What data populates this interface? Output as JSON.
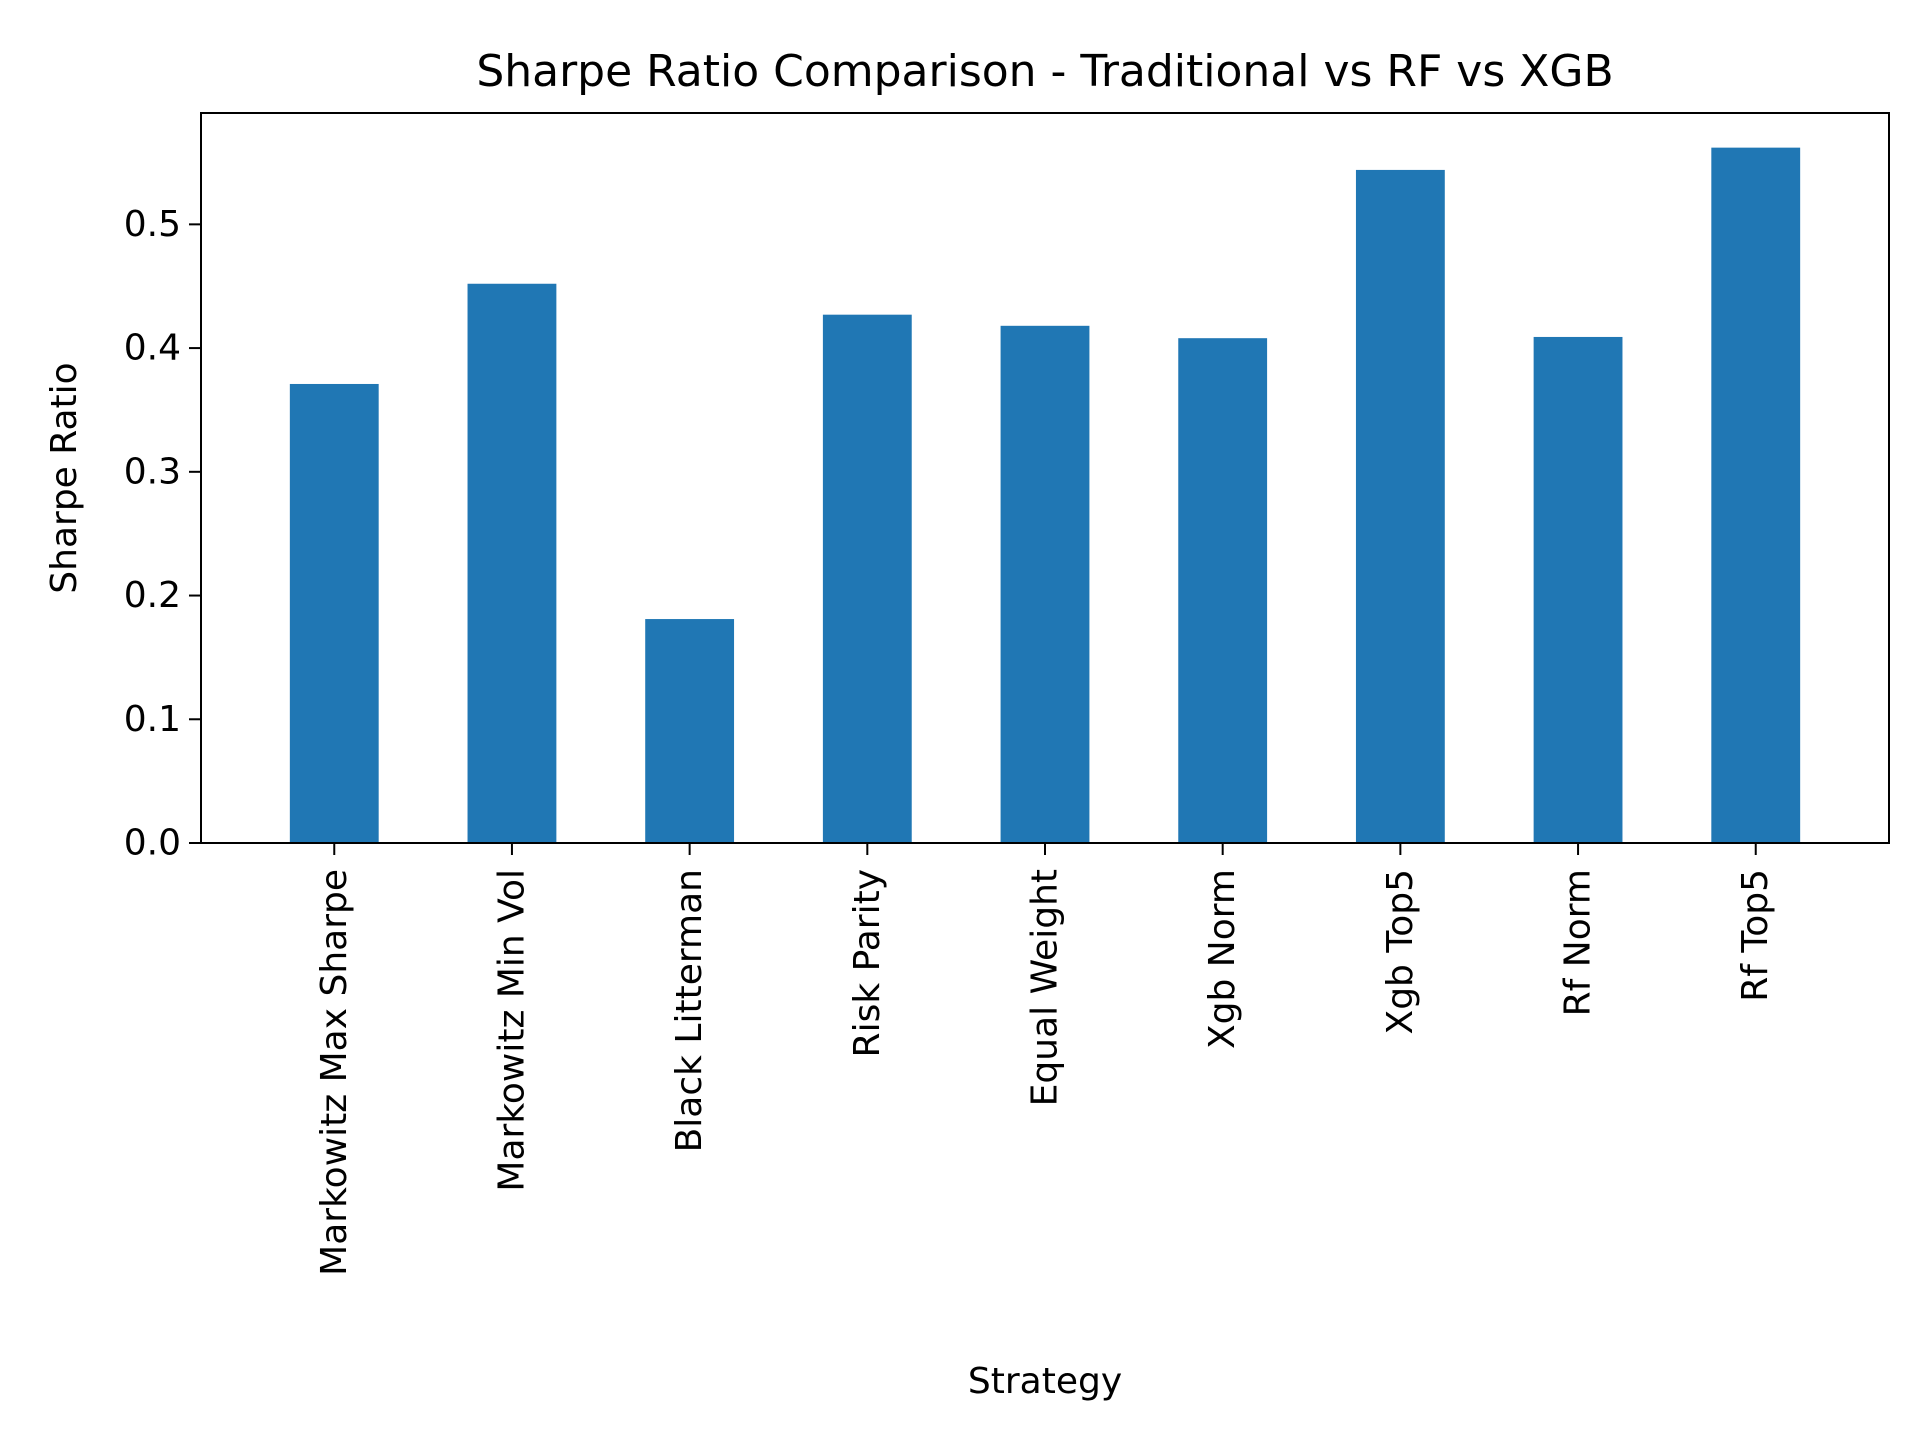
{
  "chart_data": {
    "type": "bar",
    "title": "Sharpe Ratio Comparison - Traditional vs RF vs XGB",
    "xlabel": "Strategy",
    "ylabel": "Sharpe Ratio",
    "categories": [
      "Markowitz Max Sharpe",
      "Markowitz Min Vol",
      "Black Litterman",
      "Risk Parity",
      "Equal Weight",
      "Xgb Norm",
      "Xgb Top5",
      "Rf Norm",
      "Rf Top5"
    ],
    "values": [
      0.371,
      0.452,
      0.181,
      0.427,
      0.418,
      0.408,
      0.544,
      0.409,
      0.562
    ],
    "ylim": [
      0,
      0.59
    ],
    "yticks": [
      0.0,
      0.1,
      0.2,
      0.3,
      0.4,
      0.5
    ],
    "ytick_labels": [
      "0.0",
      "0.1",
      "0.2",
      "0.3",
      "0.4",
      "0.5"
    ],
    "bar_color": "#2077b4",
    "grid": false,
    "legend": "none"
  }
}
